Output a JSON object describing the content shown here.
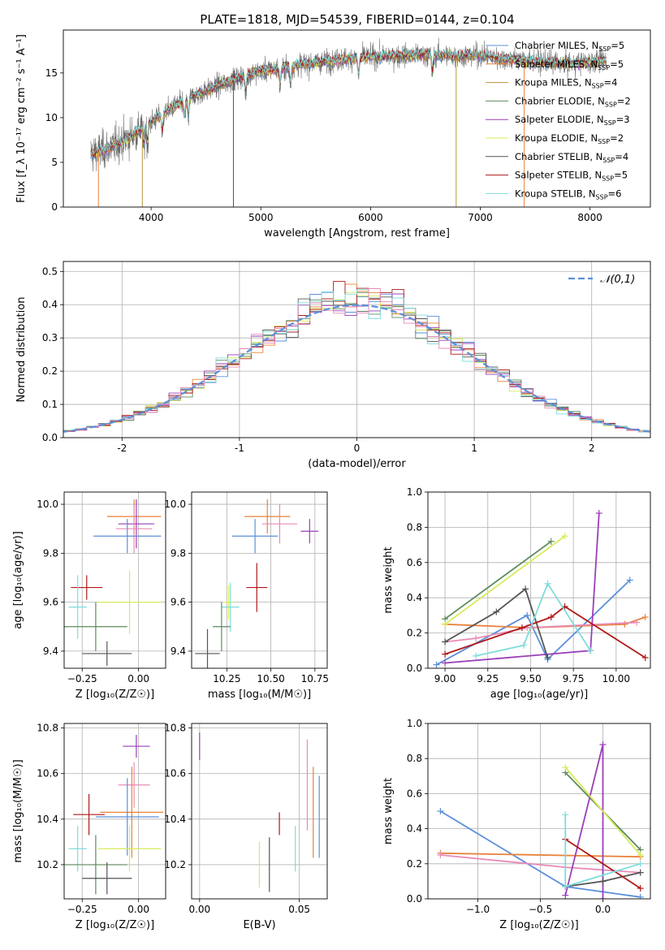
{
  "title": "PLATE=1818, MJD=54539, FIBERID=0144, z=0.104",
  "colors": {
    "Chabrier MILES": "#5b8fd9",
    "Salpeter MILES": "#e8823a",
    "Kroupa MILES": "#b8963e",
    "Chabrier ELODIE": "#5e8a5e",
    "Salpeter ELODIE": "#9a3fb8",
    "Kroupa ELODIE": "#d7ea5a",
    "Chabrier STELIB": "#555555",
    "Salpeter STELIB": "#b01818",
    "Kroupa STELIB": "#7fdcdc",
    "extra_pink": "#e88ab8"
  },
  "chart_data": [
    {
      "type": "line",
      "name": "spectrum",
      "xlabel": "wavelength [Angstrom, rest frame]",
      "ylabel": "Flux [f_λ 10⁻¹⁷ erg cm⁻² s⁻¹ A⁻¹]",
      "xlim": [
        3200,
        8550
      ],
      "ylim": [
        0,
        19.8
      ],
      "xticks": [
        4000,
        5000,
        6000,
        7000,
        8000
      ],
      "yticks": [
        0,
        5,
        10,
        15
      ],
      "legend_position": "top-right",
      "legend": [
        {
          "label": "Chabrier MILES, N",
          "sub": "SSP",
          "val": "=5",
          "color": "#5b8fd9"
        },
        {
          "label": "Salpeter MILES, N",
          "sub": "SSP",
          "val": "=5",
          "color": "#e8823a"
        },
        {
          "label": "Kroupa MILES, N",
          "sub": "SSP",
          "val": "=4",
          "color": "#b8963e"
        },
        {
          "label": "Chabrier ELODIE, N",
          "sub": "SSP",
          "val": "=2",
          "color": "#5e8a5e"
        },
        {
          "label": "Salpeter ELODIE, N",
          "sub": "SSP",
          "val": "=3",
          "color": "#9a3fb8"
        },
        {
          "label": "Kroupa ELODIE, N",
          "sub": "SSP",
          "val": "=2",
          "color": "#d7ea5a"
        },
        {
          "label": "Chabrier STELIB, N",
          "sub": "SSP",
          "val": "=4",
          "color": "#555555"
        },
        {
          "label": "Salpeter STELIB, N",
          "sub": "SSP",
          "val": "=5",
          "color": "#b01818"
        },
        {
          "label": "Kroupa STELIB, N",
          "sub": "SSP",
          "val": "=6",
          "color": "#7fdcdc"
        }
      ],
      "continuum_x": [
        3400,
        3600,
        3800,
        4000,
        4200,
        4400,
        4600,
        4800,
        5000,
        5200,
        5400,
        5600,
        5800,
        6000,
        6200,
        6400,
        6600,
        6800,
        7000,
        7200,
        7400,
        7600,
        7800,
        8000,
        8200
      ],
      "continuum_y": [
        5.8,
        6.5,
        7.8,
        9.5,
        11.2,
        12.5,
        13.5,
        14.5,
        15.2,
        15.6,
        16.0,
        16.3,
        16.6,
        16.8,
        16.9,
        17.0,
        17.0,
        16.9,
        17.0,
        16.6,
        16.4,
        16.2,
        16.0,
        16.2,
        16.4
      ],
      "spikes": [
        {
          "x": 3520,
          "to": 0,
          "color": "#e8823a"
        },
        {
          "x": 3920,
          "to": 0,
          "color": "#b8963e"
        },
        {
          "x": 4750,
          "to": 0,
          "color": "#555555"
        },
        {
          "x": 6780,
          "to": 0,
          "color": "#b8963e"
        },
        {
          "x": 7400,
          "to": 0,
          "color": "#e8823a"
        }
      ]
    },
    {
      "type": "histogram",
      "name": "residuals",
      "xlabel": "(data-model)/error",
      "ylabel": "Normed distribution",
      "xlim": [
        -2.5,
        2.5
      ],
      "ylim": [
        0,
        0.53
      ],
      "xticks": [
        -2,
        -1,
        0,
        1,
        2
      ],
      "yticks": [
        0.0,
        0.1,
        0.2,
        0.3,
        0.4,
        0.5
      ],
      "legend": [
        {
          "label": "𝒩(0,1)",
          "style": "dashed",
          "color": "#5b8fd9"
        }
      ],
      "legend_position": "top-right",
      "bin_width": 0.1,
      "normal_curve": {
        "mean": 0,
        "sigma": 1
      }
    },
    {
      "type": "errorbar",
      "name": "age-vs-Z",
      "xlabel": "Z [log₁₀(Z/Z☉)]",
      "ylabel": "age  [log₁₀(age/yr)]",
      "xlim": [
        -0.33,
        0.12
      ],
      "ylim": [
        9.33,
        10.05
      ],
      "xticks": [
        -0.25,
        0.0
      ],
      "xticklabels": [
        "−0.25",
        "0.00"
      ],
      "yticks": [
        9.4,
        9.6,
        9.8,
        10.0
      ],
      "points": [
        {
          "x": -0.02,
          "xerr": 0.12,
          "y": 9.95,
          "yerr": 0.07,
          "color": "#e8823a"
        },
        {
          "x": -0.01,
          "xerr": 0.08,
          "y": 9.92,
          "yerr": 0.1,
          "color": "#9a3fb8"
        },
        {
          "x": -0.02,
          "xerr": 0.08,
          "y": 9.9,
          "yerr": 0.1,
          "color": "#e88ab8"
        },
        {
          "x": -0.05,
          "xerr": 0.15,
          "y": 9.87,
          "yerr": 0.07,
          "color": "#5b8fd9"
        },
        {
          "x": -0.23,
          "xerr": 0.07,
          "y": 9.66,
          "yerr": 0.05,
          "color": "#b01818"
        },
        {
          "x": -0.04,
          "xerr": 0.14,
          "y": 9.6,
          "yerr": 0.13,
          "color": "#d7ea5a"
        },
        {
          "x": -0.27,
          "xerr": 0.04,
          "y": 9.58,
          "yerr": 0.13,
          "color": "#7fdcdc"
        },
        {
          "x": -0.19,
          "xerr": 0.14,
          "y": 9.5,
          "yerr": 0.1,
          "color": "#5e8a5e"
        },
        {
          "x": -0.14,
          "xerr": 0.11,
          "y": 9.39,
          "yerr": 0.05,
          "color": "#555555"
        }
      ]
    },
    {
      "type": "errorbar",
      "name": "age-vs-mass",
      "xlabel": "mass [log₁₀(M/M☉)]",
      "ylabel": "",
      "xlim": [
        10.05,
        10.82
      ],
      "ylim": [
        9.33,
        10.05
      ],
      "xticks": [
        10.25,
        10.5,
        10.75
      ],
      "xticklabels": [
        "10.25",
        "10.50",
        "10.75"
      ],
      "yticks": [
        9.4,
        9.6,
        9.8,
        10.0
      ],
      "points": [
        {
          "x": 10.48,
          "xerr": 0.13,
          "y": 9.95,
          "yerr": 0.07,
          "color": "#e8823a"
        },
        {
          "x": 10.72,
          "xerr": 0.05,
          "y": 9.89,
          "yerr": 0.05,
          "color": "#9a3fb8"
        },
        {
          "x": 10.55,
          "xerr": 0.1,
          "y": 9.92,
          "yerr": 0.08,
          "color": "#e88ab8"
        },
        {
          "x": 10.41,
          "xerr": 0.13,
          "y": 9.87,
          "yerr": 0.07,
          "color": "#5b8fd9"
        },
        {
          "x": 10.42,
          "xerr": 0.06,
          "y": 9.66,
          "yerr": 0.1,
          "color": "#b01818"
        },
        {
          "x": 10.26,
          "xerr": 0.03,
          "y": 9.6,
          "yerr": 0.07,
          "color": "#d7ea5a"
        },
        {
          "x": 10.27,
          "xerr": 0.05,
          "y": 9.58,
          "yerr": 0.1,
          "color": "#7fdcdc"
        },
        {
          "x": 10.22,
          "xerr": 0.05,
          "y": 9.5,
          "yerr": 0.1,
          "color": "#5e8a5e"
        },
        {
          "x": 10.14,
          "xerr": 0.07,
          "y": 9.39,
          "yerr": 0.1,
          "color": "#555555"
        }
      ]
    },
    {
      "type": "line",
      "name": "weight-vs-age",
      "xlabel": "age  [log₁₀(age/yr)]",
      "ylabel": "mass weight",
      "xlim": [
        8.9,
        10.2
      ],
      "ylim": [
        0,
        1.0
      ],
      "xticks": [
        9.0,
        9.25,
        9.5,
        9.75,
        10.0
      ],
      "xticklabels": [
        "9.00",
        "9.25",
        "9.50",
        "9.75",
        "10.00"
      ],
      "yticks": [
        0.0,
        0.2,
        0.4,
        0.6,
        0.8,
        1.0
      ],
      "series": [
        {
          "color": "#5b8fd9",
          "x": [
            8.95,
            9.48,
            9.6,
            10.08
          ],
          "y": [
            0.02,
            0.3,
            0.05,
            0.5
          ]
        },
        {
          "color": "#e8823a",
          "x": [
            9.0,
            9.5,
            10.05,
            10.17
          ],
          "y": [
            0.25,
            0.23,
            0.25,
            0.29
          ]
        },
        {
          "color": "#e88ab8",
          "x": [
            9.0,
            9.18,
            9.48,
            10.12
          ],
          "y": [
            0.15,
            0.17,
            0.23,
            0.26
          ]
        },
        {
          "color": "#5e8a5e",
          "x": [
            9.0,
            9.62
          ],
          "y": [
            0.28,
            0.72
          ]
        },
        {
          "color": "#9a3fb8",
          "x": [
            9.0,
            9.85,
            9.9
          ],
          "y": [
            0.03,
            0.1,
            0.88
          ]
        },
        {
          "color": "#d7ea5a",
          "x": [
            9.0,
            9.7
          ],
          "y": [
            0.25,
            0.75
          ]
        },
        {
          "color": "#555555",
          "x": [
            9.0,
            9.3,
            9.47,
            9.6
          ],
          "y": [
            0.15,
            0.32,
            0.45,
            0.06
          ]
        },
        {
          "color": "#b01818",
          "x": [
            9.0,
            9.45,
            9.62,
            9.7,
            10.17
          ],
          "y": [
            0.08,
            0.23,
            0.29,
            0.35,
            0.06
          ]
        },
        {
          "color": "#7fdcdc",
          "x": [
            9.18,
            9.46,
            9.6,
            9.85
          ],
          "y": [
            0.07,
            0.13,
            0.48,
            0.1
          ]
        }
      ]
    },
    {
      "type": "errorbar",
      "name": "mass-vs-Z",
      "xlabel": "Z [log₁₀(Z/Z☉)]",
      "ylabel": "mass [log₁₀(M/M☉)]",
      "xlim": [
        -0.33,
        0.12
      ],
      "ylim": [
        10.05,
        10.82
      ],
      "xticks": [
        -0.25,
        0.0
      ],
      "xticklabels": [
        "−0.25",
        "0.00"
      ],
      "yticks": [
        10.2,
        10.4,
        10.6,
        10.8
      ],
      "points": [
        {
          "x": -0.01,
          "xerr": 0.06,
          "y": 10.72,
          "yerr": 0.05,
          "color": "#9a3fb8"
        },
        {
          "x": -0.02,
          "xerr": 0.07,
          "y": 10.55,
          "yerr": 0.1,
          "color": "#e88ab8"
        },
        {
          "x": -0.03,
          "xerr": 0.14,
          "y": 10.43,
          "yerr": 0.2,
          "color": "#e8823a"
        },
        {
          "x": -0.22,
          "xerr": 0.07,
          "y": 10.42,
          "yerr": 0.09,
          "color": "#b01818"
        },
        {
          "x": -0.05,
          "xerr": 0.14,
          "y": 10.41,
          "yerr": 0.17,
          "color": "#5b8fd9"
        },
        {
          "x": -0.27,
          "xerr": 0.04,
          "y": 10.27,
          "yerr": 0.1,
          "color": "#7fdcdc"
        },
        {
          "x": -0.04,
          "xerr": 0.14,
          "y": 10.27,
          "yerr": 0.1,
          "color": "#d7ea5a"
        },
        {
          "x": -0.19,
          "xerr": 0.14,
          "y": 10.2,
          "yerr": 0.13,
          "color": "#5e8a5e"
        },
        {
          "x": -0.14,
          "xerr": 0.11,
          "y": 10.14,
          "yerr": 0.07,
          "color": "#555555"
        }
      ]
    },
    {
      "type": "errorbar",
      "name": "mass-vs-EBV",
      "xlabel": "E(B-V)",
      "ylabel": "",
      "xlim": [
        -0.004,
        0.064
      ],
      "ylim": [
        10.05,
        10.82
      ],
      "xticks": [
        0.0,
        0.05
      ],
      "xticklabels": [
        "0.00",
        "0.05"
      ],
      "yticks": [
        10.2,
        10.4,
        10.6,
        10.8
      ],
      "points": [
        {
          "x": 0.0,
          "y": 10.72,
          "yerr": 0.06,
          "color": "#9a3fb8"
        },
        {
          "x": 0.054,
          "y": 10.55,
          "yerr": 0.2,
          "color": "#e88ab8"
        },
        {
          "x": 0.057,
          "y": 10.43,
          "yerr": 0.2,
          "color": "#e8823a"
        },
        {
          "x": 0.06,
          "y": 10.41,
          "yerr": 0.18,
          "color": "#5b8fd9"
        },
        {
          "x": 0.04,
          "y": 10.38,
          "yerr": 0.05,
          "color": "#b01818"
        },
        {
          "x": 0.048,
          "y": 10.27,
          "yerr": 0.1,
          "color": "#7fdcdc"
        },
        {
          "x": 0.03,
          "y": 10.2,
          "yerr": 0.1,
          "color": "#d7ea5a"
        },
        {
          "x": 0.035,
          "y": 10.2,
          "yerr": 0.12,
          "color": "#555555"
        }
      ]
    },
    {
      "type": "line",
      "name": "weight-vs-Z",
      "xlabel": "Z [log₁₀(Z/Z☉)]",
      "ylabel": "mass weight",
      "xlim": [
        -1.4,
        0.38
      ],
      "ylim": [
        0,
        1.0
      ],
      "xticks": [
        -1.0,
        -0.5,
        0.0
      ],
      "xticklabels": [
        "−1.0",
        "−0.5",
        "0.0"
      ],
      "yticks": [
        0.0,
        0.2,
        0.4,
        0.6,
        0.8,
        1.0
      ],
      "series": [
        {
          "color": "#5b8fd9",
          "x": [
            -1.3,
            -0.3,
            0.0,
            0.3
          ],
          "y": [
            0.5,
            0.07,
            0.04,
            0.01
          ]
        },
        {
          "color": "#e8823a",
          "x": [
            -1.3,
            0.3
          ],
          "y": [
            0.26,
            0.24
          ]
        },
        {
          "color": "#e88ab8",
          "x": [
            -1.3,
            -0.3,
            0.3
          ],
          "y": [
            0.25,
            0.18,
            0.15
          ]
        },
        {
          "color": "#5e8a5e",
          "x": [
            -0.3,
            0.3
          ],
          "y": [
            0.72,
            0.28
          ]
        },
        {
          "color": "#9a3fb8",
          "x": [
            -0.3,
            0.0,
            0.0
          ],
          "y": [
            0.02,
            0.88,
            0.0
          ]
        },
        {
          "color": "#d7ea5a",
          "x": [
            -0.3,
            0.3
          ],
          "y": [
            0.75,
            0.25
          ]
        },
        {
          "color": "#555555",
          "x": [
            -0.3,
            0.0,
            0.3
          ],
          "y": [
            0.07,
            0.1,
            0.15
          ]
        },
        {
          "color": "#b01818",
          "x": [
            -0.3,
            0.3
          ],
          "y": [
            0.34,
            0.06
          ]
        },
        {
          "color": "#7fdcdc",
          "x": [
            -0.3,
            -0.3,
            0.3
          ],
          "y": [
            0.48,
            0.07,
            0.2
          ]
        }
      ]
    }
  ]
}
